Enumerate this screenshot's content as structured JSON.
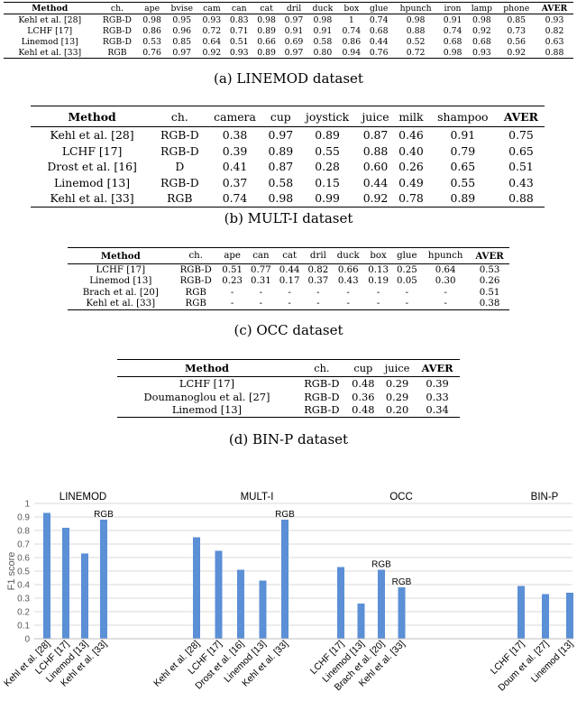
{
  "tables": [
    {
      "caption": "(a) LINEMOD dataset",
      "headers": [
        "Method",
        "ch.",
        "ape",
        "bvise",
        "cam",
        "can",
        "cat",
        "dril",
        "duck",
        "box",
        "glue",
        "hpunch",
        "iron",
        "lamp",
        "phone",
        "AVER"
      ],
      "rows": [
        [
          "Kehl et al. [28]",
          "RGB-D",
          "0.98",
          "0.95",
          "0.93",
          "0.83",
          "0.98",
          "0.97",
          "0.98",
          "1",
          "0.74",
          "0.98",
          "0.91",
          "0.98",
          "0.85",
          "0.93"
        ],
        [
          "LCHF [17]",
          "RGB-D",
          "0.86",
          "0.96",
          "0.72",
          "0.71",
          "0.89",
          "0.91",
          "0.91",
          "0.74",
          "0.68",
          "0.88",
          "0.74",
          "0.92",
          "0.73",
          "0.82"
        ],
        [
          "Linemod [13]",
          "RGB-D",
          "0.53",
          "0.85",
          "0.64",
          "0.51",
          "0.66",
          "0.69",
          "0.58",
          "0.86",
          "0.44",
          "0.52",
          "0.68",
          "0.68",
          "0.56",
          "0.63"
        ],
        [
          "Kehl et al. [33]",
          "RGB",
          "0.76",
          "0.97",
          "0.92",
          "0.93",
          "0.89",
          "0.97",
          "0.80",
          "0.94",
          "0.76",
          "0.72",
          "0.98",
          "0.93",
          "0.92",
          "0.88"
        ]
      ]
    },
    {
      "caption": "(b) MULT-I dataset",
      "headers": [
        "Method",
        "ch.",
        "camera",
        "cup",
        "joystick",
        "juice",
        "milk",
        "shampoo",
        "AVER"
      ],
      "rows": [
        [
          "Kehl et al. [28]",
          "RGB-D",
          "0.38",
          "0.97",
          "0.89",
          "0.87",
          "0.46",
          "0.91",
          "0.75"
        ],
        [
          "LCHF [17]",
          "RGB-D",
          "0.39",
          "0.89",
          "0.55",
          "0.88",
          "0.40",
          "0.79",
          "0.65"
        ],
        [
          "Drost et al. [16]",
          "D",
          "0.41",
          "0.87",
          "0.28",
          "0.60",
          "0.26",
          "0.65",
          "0.51"
        ],
        [
          "Linemod [13]",
          "RGB-D",
          "0.37",
          "0.58",
          "0.15",
          "0.44",
          "0.49",
          "0.55",
          "0.43"
        ],
        [
          "Kehl et al. [33]",
          "RGB",
          "0.74",
          "0.98",
          "0.99",
          "0.92",
          "0.78",
          "0.89",
          "0.88"
        ]
      ]
    },
    {
      "caption": "(c) OCC dataset",
      "headers": [
        "Method",
        "ch.",
        "ape",
        "can",
        "cat",
        "dril",
        "duck",
        "box",
        "glue",
        "hpunch",
        "AVER"
      ],
      "rows": [
        [
          "LCHF [17]",
          "RGB-D",
          "0.51",
          "0.77",
          "0.44",
          "0.82",
          "0.66",
          "0.13",
          "0.25",
          "0.64",
          "0.53"
        ],
        [
          "Linemod [13]",
          "RGB-D",
          "0.23",
          "0.31",
          "0.17",
          "0.37",
          "0.43",
          "0.19",
          "0.05",
          "0.30",
          "0.26"
        ],
        [
          "Brach et al. [20]",
          "RGB",
          "-",
          "-",
          "-",
          "-",
          "-",
          "-",
          "-",
          "-",
          "0.51"
        ],
        [
          "Kehl et al. [33]",
          "RGB",
          "-",
          "-",
          "-",
          "-",
          "-",
          "-",
          "-",
          "-",
          "0.38"
        ]
      ]
    },
    {
      "caption": "(d) BIN-P dataset",
      "headers": [
        "Method",
        "ch.",
        "cup",
        "juice",
        "AVER"
      ],
      "rows": [
        [
          "LCHF [17]",
          "RGB-D",
          "0.48",
          "0.29",
          "0.39"
        ],
        [
          "Doumanoglou et al. [27]",
          "RGB-D",
          "0.36",
          "0.29",
          "0.33"
        ],
        [
          "Linemod [13]",
          "RGB-D",
          "0.48",
          "0.20",
          "0.34"
        ]
      ]
    }
  ],
  "chart_data": {
    "type": "bar",
    "ylabel": "F1 score",
    "ylim": [
      0,
      1
    ],
    "yticks": [
      "0",
      "0.1",
      "0.2",
      "0.3",
      "0.4",
      "0.5",
      "0.6",
      "0.7",
      "0.8",
      "0.9",
      "1"
    ],
    "grid": true,
    "color": "#5B8FD6",
    "groups": [
      {
        "name": "LINEMOD",
        "categories": [
          "Kehl et al. [28]",
          "LCHF [17]",
          "Linemod [13]",
          "Kehl et al. [33]"
        ],
        "values": [
          0.93,
          0.82,
          0.63,
          0.88
        ],
        "annotations": [
          "",
          "",
          "",
          "RGB"
        ]
      },
      {
        "name": "MULT-I",
        "categories": [
          "Kehl et al. [28]",
          "LCHF [17]",
          "Drost et al. [16]",
          "Linemod [13]",
          "Kehl et al. [33]"
        ],
        "values": [
          0.75,
          0.65,
          0.51,
          0.43,
          0.88
        ],
        "annotations": [
          "",
          "",
          "",
          "",
          "RGB"
        ]
      },
      {
        "name": "OCC",
        "categories": [
          "LCHF [17]",
          "Linemod [13]",
          "Brach et al. [20]",
          "Kehl et al. [33]"
        ],
        "values": [
          0.53,
          0.26,
          0.51,
          0.38
        ],
        "annotations": [
          "",
          "",
          "RGB",
          "RGB"
        ]
      },
      {
        "name": "BIN-P",
        "categories": [
          "LCHF [17]",
          "Doum et al. [27]",
          "Linemod [13]"
        ],
        "values": [
          0.39,
          0.33,
          0.34
        ],
        "annotations": [
          "",
          "",
          ""
        ]
      }
    ]
  }
}
